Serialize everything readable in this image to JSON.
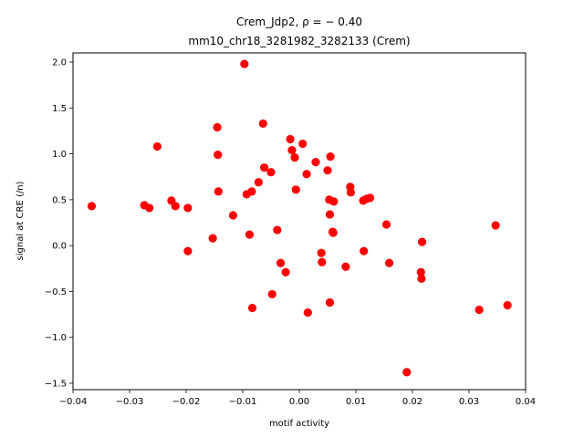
{
  "chart_data": {
    "type": "scatter",
    "title_line1": "Crem_Jdp2, ρ = − 0.40",
    "title_line2": "mm10_chr18_3281982_3282133 (Crem)",
    "xlabel": "motif activity",
    "ylabel": "signal at CRE (/n)",
    "xlim": [
      -0.04,
      0.04
    ],
    "ylim": [
      -1.57,
      2.1
    ],
    "xticks": [
      -0.04,
      -0.03,
      -0.02,
      -0.01,
      0.0,
      0.01,
      0.02,
      0.03,
      0.04
    ],
    "xtick_labels": [
      "−0.04",
      "−0.03",
      "−0.02",
      "−0.01",
      "0.00",
      "0.01",
      "0.02",
      "0.03",
      "0.04"
    ],
    "yticks": [
      -1.5,
      -1.0,
      -0.5,
      0.0,
      0.5,
      1.0,
      1.5,
      2.0
    ],
    "ytick_labels": [
      "−1.5",
      "−1.0",
      "−0.5",
      "0.0",
      "0.5",
      "1.0",
      "1.5",
      "2.0"
    ],
    "marker_color": "#ff0000",
    "grid": false,
    "points": [
      {
        "x": -0.0367,
        "y": 0.43
      },
      {
        "x": -0.0274,
        "y": 0.44
      },
      {
        "x": -0.0265,
        "y": 0.41
      },
      {
        "x": -0.0251,
        "y": 1.08
      },
      {
        "x": -0.0226,
        "y": 0.49
      },
      {
        "x": -0.0219,
        "y": 0.43
      },
      {
        "x": -0.0197,
        "y": 0.41
      },
      {
        "x": -0.0197,
        "y": -0.06
      },
      {
        "x": -0.0153,
        "y": 0.08
      },
      {
        "x": -0.0145,
        "y": 1.29
      },
      {
        "x": -0.0144,
        "y": 0.99
      },
      {
        "x": -0.0143,
        "y": 0.59
      },
      {
        "x": -0.0117,
        "y": 0.33
      },
      {
        "x": -0.0097,
        "y": 1.98
      },
      {
        "x": -0.0093,
        "y": 0.56
      },
      {
        "x": -0.0088,
        "y": 0.12
      },
      {
        "x": -0.0084,
        "y": 0.59
      },
      {
        "x": -0.0083,
        "y": -0.68
      },
      {
        "x": -0.0072,
        "y": 0.69
      },
      {
        "x": -0.0064,
        "y": 1.33
      },
      {
        "x": -0.0062,
        "y": 0.85
      },
      {
        "x": -0.005,
        "y": 0.8
      },
      {
        "x": -0.0048,
        "y": -0.53
      },
      {
        "x": -0.0039,
        "y": 0.17
      },
      {
        "x": -0.0033,
        "y": -0.19
      },
      {
        "x": -0.0024,
        "y": -0.29
      },
      {
        "x": -0.0016,
        "y": 1.16
      },
      {
        "x": -0.0013,
        "y": 1.04
      },
      {
        "x": -0.0008,
        "y": 0.96
      },
      {
        "x": -0.0006,
        "y": 0.61
      },
      {
        "x": 0.0006,
        "y": 1.11
      },
      {
        "x": 0.0013,
        "y": 0.78
      },
      {
        "x": 0.0015,
        "y": -0.73
      },
      {
        "x": 0.0029,
        "y": 0.91
      },
      {
        "x": 0.0039,
        "y": -0.08
      },
      {
        "x": 0.004,
        "y": -0.18
      },
      {
        "x": 0.005,
        "y": 0.82
      },
      {
        "x": 0.0053,
        "y": 0.5
      },
      {
        "x": 0.0054,
        "y": 0.34
      },
      {
        "x": 0.0054,
        "y": -0.62
      },
      {
        "x": 0.0055,
        "y": 0.97
      },
      {
        "x": 0.0059,
        "y": 0.15
      },
      {
        "x": 0.006,
        "y": 0.14
      },
      {
        "x": 0.0061,
        "y": 0.48
      },
      {
        "x": 0.0082,
        "y": -0.23
      },
      {
        "x": 0.009,
        "y": 0.64
      },
      {
        "x": 0.0091,
        "y": 0.58
      },
      {
        "x": 0.0113,
        "y": 0.49
      },
      {
        "x": 0.0114,
        "y": -0.06
      },
      {
        "x": 0.0119,
        "y": 0.51
      },
      {
        "x": 0.0125,
        "y": 0.52
      },
      {
        "x": 0.0154,
        "y": 0.23
      },
      {
        "x": 0.0159,
        "y": -0.19
      },
      {
        "x": 0.019,
        "y": -1.38
      },
      {
        "x": 0.0215,
        "y": -0.29
      },
      {
        "x": 0.0216,
        "y": -0.36
      },
      {
        "x": 0.0217,
        "y": 0.04
      },
      {
        "x": 0.0318,
        "y": -0.7
      },
      {
        "x": 0.0347,
        "y": 0.22
      },
      {
        "x": 0.0368,
        "y": -0.65
      }
    ]
  }
}
